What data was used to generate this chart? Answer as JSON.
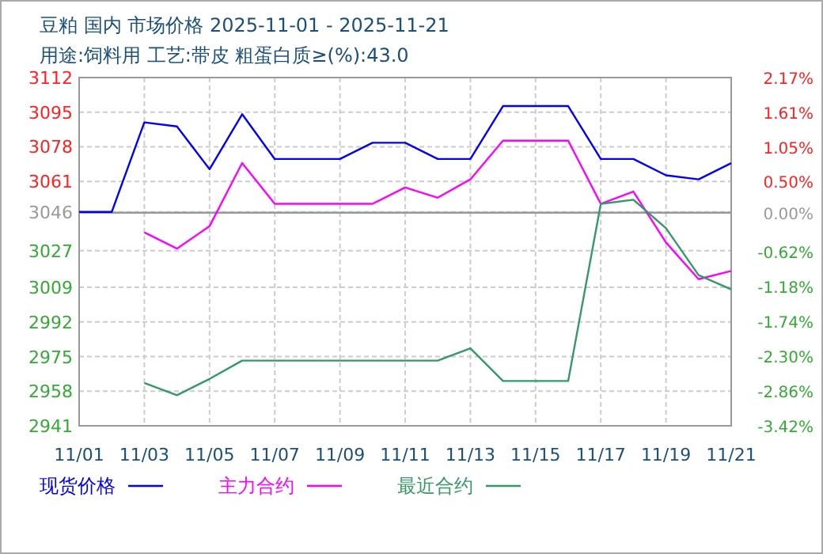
{
  "chart_data": {
    "type": "line",
    "title": "豆粕 国内 市场价格 2025-11-01 - 2025-11-21",
    "subtitle": "用途:饲料用 工艺:带皮 粗蛋白质≥(%):43.0",
    "categories": [
      "11/01",
      null,
      "11/03",
      null,
      "11/05",
      null,
      "11/07",
      null,
      "11/09",
      null,
      "11/11",
      null,
      "11/13",
      null,
      "11/15",
      null,
      "11/17",
      null,
      "11/19",
      null,
      "11/21"
    ],
    "series": [
      {
        "name": "现货价格",
        "color": "#0000ff",
        "values": [
          3046,
          3046,
          3090,
          3088,
          3067,
          3094,
          3072,
          3072,
          3072,
          3080,
          3080,
          3072,
          3072,
          3098,
          3098,
          3098,
          3072,
          3072,
          3064,
          3062,
          3070
        ]
      },
      {
        "name": "主力合约",
        "color": "#ff00ff",
        "values": [
          null,
          null,
          3036,
          3028,
          3039,
          3070,
          3050,
          3050,
          3050,
          3050,
          3058,
          3053,
          3062,
          3081,
          3081,
          3081,
          3050,
          3056,
          3031,
          3013,
          3017
        ]
      },
      {
        "name": "最近合约",
        "color": "#339966",
        "values": [
          null,
          null,
          2962,
          2956,
          2964,
          2973,
          2973,
          2973,
          2973,
          2973,
          2973,
          2973,
          2979,
          2963,
          2963,
          2963,
          3050,
          3052,
          3038,
          3015,
          3008
        ]
      }
    ],
    "ylim": [
      2941,
      3112
    ],
    "yticks": [
      3112,
      3095,
      3078,
      3061,
      3046,
      3027,
      3009,
      2992,
      2975,
      2958,
      2941
    ],
    "y2lim": [
      -3.42,
      2.17
    ],
    "y2ticks": [
      {
        "value": 2.17,
        "label": "2.17%"
      },
      {
        "value": 1.61,
        "label": "1.61%"
      },
      {
        "value": 1.05,
        "label": "1.05%"
      },
      {
        "value": 0.5,
        "label": "0.50%"
      },
      {
        "value": 0,
        "label": "0.00%"
      },
      {
        "value": -0.62,
        "label": "-0.62%"
      },
      {
        "value": -1.18,
        "label": "-1.18%"
      },
      {
        "value": -1.74,
        "label": "-1.74%"
      },
      {
        "value": -2.3,
        "label": "-2.30%"
      },
      {
        "value": -2.86,
        "label": "-2.86%"
      },
      {
        "value": -3.42,
        "label": "-3.42%"
      }
    ],
    "ref_lines": [
      {
        "axis": "y2",
        "value": 0,
        "color": "#999999"
      }
    ],
    "grid": true,
    "legend": "bottom"
  }
}
